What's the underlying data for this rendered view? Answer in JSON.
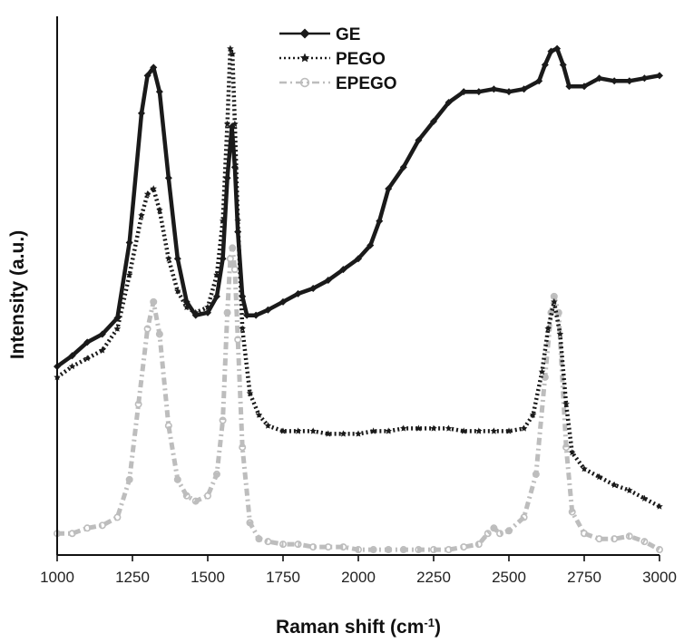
{
  "chart_data": {
    "type": "line",
    "xlabel": "Raman shift (cm",
    "xlabel_sup": "-1",
    "xlabel_close": ")",
    "ylabel": "Intensity (a.u.)",
    "xlim": [
      1000,
      3000
    ],
    "ylim": [
      0,
      100
    ],
    "x_ticks": [
      1000,
      1250,
      1500,
      1750,
      2000,
      2250,
      2500,
      2750,
      3000
    ],
    "x_tick_labels": [
      "1000",
      "1250",
      "1500",
      "1750",
      "2000",
      "2250",
      "2500",
      "2750",
      "3000"
    ],
    "y_ticks_labeled": false,
    "grid": false,
    "legend_position": "top-center",
    "series": [
      {
        "name": "GE",
        "style": "solid-diamond",
        "color": "#1a1a1a",
        "points": [
          [
            1000,
            35
          ],
          [
            1050,
            37
          ],
          [
            1100,
            39.5
          ],
          [
            1150,
            41
          ],
          [
            1200,
            44
          ],
          [
            1240,
            58
          ],
          [
            1280,
            82
          ],
          [
            1300,
            89
          ],
          [
            1320,
            90.5
          ],
          [
            1340,
            86
          ],
          [
            1370,
            70
          ],
          [
            1400,
            55
          ],
          [
            1430,
            47
          ],
          [
            1460,
            44.5
          ],
          [
            1500,
            45
          ],
          [
            1530,
            48
          ],
          [
            1550,
            55
          ],
          [
            1565,
            70
          ],
          [
            1580,
            79.5
          ],
          [
            1590,
            72
          ],
          [
            1600,
            60
          ],
          [
            1615,
            48
          ],
          [
            1630,
            44.5
          ],
          [
            1660,
            44.5
          ],
          [
            1700,
            45.5
          ],
          [
            1750,
            47
          ],
          [
            1800,
            48.5
          ],
          [
            1850,
            49.5
          ],
          [
            1900,
            51
          ],
          [
            1950,
            53
          ],
          [
            2000,
            55
          ],
          [
            2040,
            57.5
          ],
          [
            2070,
            62
          ],
          [
            2100,
            68
          ],
          [
            2150,
            72
          ],
          [
            2200,
            77
          ],
          [
            2250,
            80.5
          ],
          [
            2300,
            84
          ],
          [
            2350,
            86
          ],
          [
            2400,
            86
          ],
          [
            2450,
            86.5
          ],
          [
            2500,
            86
          ],
          [
            2550,
            86.5
          ],
          [
            2600,
            88
          ],
          [
            2620,
            91
          ],
          [
            2640,
            93.5
          ],
          [
            2660,
            94
          ],
          [
            2680,
            91
          ],
          [
            2700,
            87
          ],
          [
            2750,
            87
          ],
          [
            2800,
            88.5
          ],
          [
            2850,
            88
          ],
          [
            2900,
            88
          ],
          [
            2950,
            88.5
          ],
          [
            3000,
            89
          ]
        ]
      },
      {
        "name": "PEGO",
        "style": "dotted-star",
        "color": "#1a1a1a",
        "points": [
          [
            1000,
            33
          ],
          [
            1050,
            35
          ],
          [
            1100,
            36.5
          ],
          [
            1150,
            38
          ],
          [
            1200,
            42
          ],
          [
            1240,
            52
          ],
          [
            1280,
            63
          ],
          [
            1300,
            67
          ],
          [
            1320,
            68
          ],
          [
            1340,
            64
          ],
          [
            1370,
            55
          ],
          [
            1400,
            49
          ],
          [
            1430,
            46
          ],
          [
            1460,
            45
          ],
          [
            1500,
            46
          ],
          [
            1530,
            52
          ],
          [
            1550,
            62
          ],
          [
            1565,
            80
          ],
          [
            1575,
            94
          ],
          [
            1582,
            93
          ],
          [
            1590,
            80
          ],
          [
            1600,
            62
          ],
          [
            1615,
            42
          ],
          [
            1640,
            30
          ],
          [
            1670,
            26
          ],
          [
            1700,
            24
          ],
          [
            1750,
            23
          ],
          [
            1800,
            23
          ],
          [
            1850,
            23
          ],
          [
            1900,
            22.5
          ],
          [
            1950,
            22.5
          ],
          [
            2000,
            22.5
          ],
          [
            2050,
            23
          ],
          [
            2100,
            23
          ],
          [
            2150,
            23.5
          ],
          [
            2200,
            23.5
          ],
          [
            2250,
            23.5
          ],
          [
            2300,
            23.5
          ],
          [
            2350,
            23
          ],
          [
            2400,
            23
          ],
          [
            2450,
            23
          ],
          [
            2500,
            23
          ],
          [
            2550,
            23.5
          ],
          [
            2580,
            26
          ],
          [
            2610,
            34
          ],
          [
            2630,
            42
          ],
          [
            2650,
            47
          ],
          [
            2670,
            41
          ],
          [
            2690,
            28
          ],
          [
            2710,
            19
          ],
          [
            2750,
            16
          ],
          [
            2800,
            14.5
          ],
          [
            2850,
            13
          ],
          [
            2900,
            12
          ],
          [
            2950,
            10.5
          ],
          [
            3000,
            9
          ]
        ]
      },
      {
        "name": "EPEGO",
        "style": "dashdot-circle",
        "color": "#bdbdbd",
        "points": [
          [
            1000,
            4
          ],
          [
            1050,
            4
          ],
          [
            1100,
            5
          ],
          [
            1150,
            5.5
          ],
          [
            1200,
            7
          ],
          [
            1240,
            14
          ],
          [
            1270,
            28
          ],
          [
            1300,
            42
          ],
          [
            1320,
            47
          ],
          [
            1340,
            41
          ],
          [
            1370,
            24
          ],
          [
            1400,
            14
          ],
          [
            1430,
            11
          ],
          [
            1460,
            10
          ],
          [
            1500,
            11
          ],
          [
            1530,
            15
          ],
          [
            1550,
            25
          ],
          [
            1565,
            45
          ],
          [
            1575,
            55
          ],
          [
            1582,
            57
          ],
          [
            1590,
            53
          ],
          [
            1600,
            40
          ],
          [
            1615,
            20
          ],
          [
            1640,
            6
          ],
          [
            1670,
            3
          ],
          [
            1700,
            2.5
          ],
          [
            1750,
            2
          ],
          [
            1800,
            2
          ],
          [
            1850,
            1.5
          ],
          [
            1900,
            1.5
          ],
          [
            1950,
            1.5
          ],
          [
            2000,
            1
          ],
          [
            2050,
            1
          ],
          [
            2100,
            1
          ],
          [
            2150,
            1
          ],
          [
            2200,
            1
          ],
          [
            2250,
            1
          ],
          [
            2300,
            1
          ],
          [
            2350,
            1.5
          ],
          [
            2400,
            2
          ],
          [
            2430,
            4
          ],
          [
            2450,
            5
          ],
          [
            2470,
            4
          ],
          [
            2500,
            4.5
          ],
          [
            2550,
            7
          ],
          [
            2590,
            15
          ],
          [
            2620,
            33
          ],
          [
            2640,
            45
          ],
          [
            2650,
            48
          ],
          [
            2665,
            45
          ],
          [
            2690,
            20
          ],
          [
            2710,
            8
          ],
          [
            2750,
            4
          ],
          [
            2800,
            3
          ],
          [
            2850,
            3
          ],
          [
            2900,
            3.5
          ],
          [
            2950,
            2.5
          ],
          [
            3000,
            1
          ]
        ]
      }
    ]
  }
}
